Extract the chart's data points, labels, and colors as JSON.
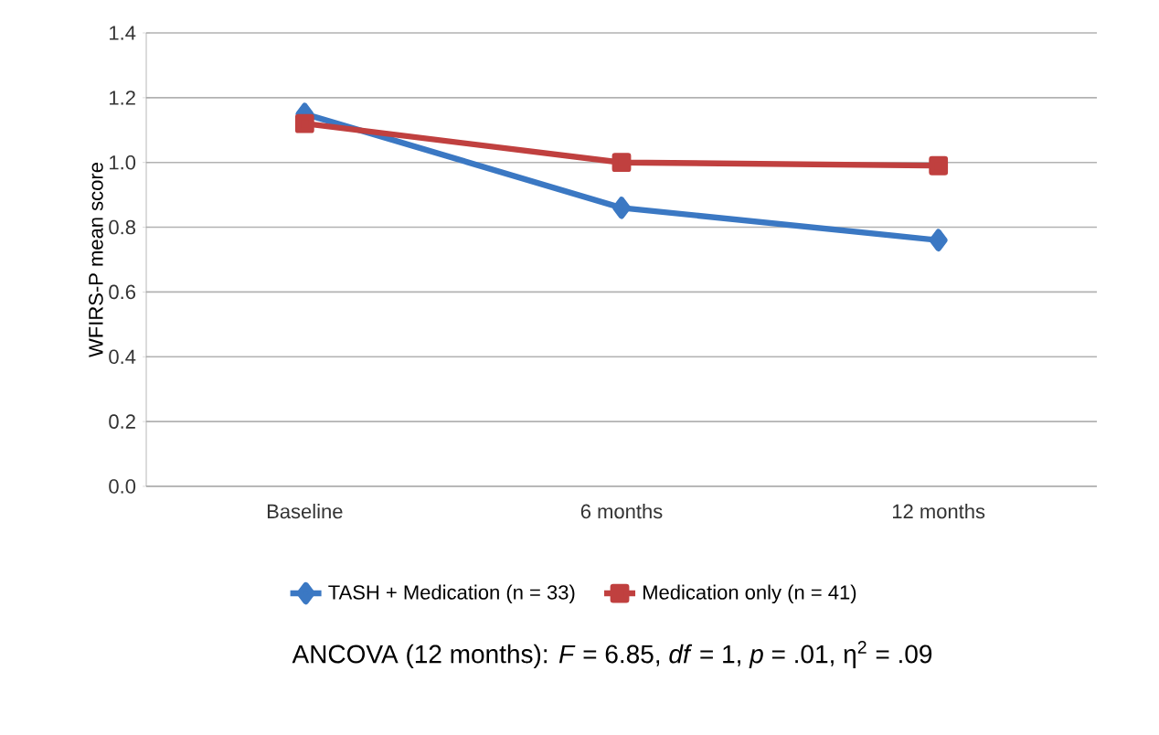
{
  "chart_data": {
    "type": "line",
    "ylabel": "WFIRS-P mean score",
    "categories": [
      "Baseline",
      "6 months",
      "12 months"
    ],
    "series": [
      {
        "name": "TASH + Medication (n = 33)",
        "color": "#3b78c3",
        "values": [
          1.15,
          0.86,
          0.76
        ],
        "marker": "diamond"
      },
      {
        "name": "Medication only (n = 41)",
        "color": "#c0403f",
        "values": [
          1.12,
          1.0,
          0.99
        ],
        "marker": "square"
      }
    ],
    "ylim": [
      0,
      1.4
    ],
    "yticks": [
      {
        "value": 0,
        "label": "0.0"
      },
      0.2,
      0.4,
      0.6,
      0.8,
      {
        "value": 1,
        "label": "1.0"
      },
      1.2,
      1.4
    ],
    "grid": "y",
    "legend": "bottom",
    "line_style": "solid",
    "annotations": [
      "ANCOVA (12 months): *F* = 6.85, *df* = 1, *p* = .01, η$^{2}$ = .09"
    ]
  }
}
